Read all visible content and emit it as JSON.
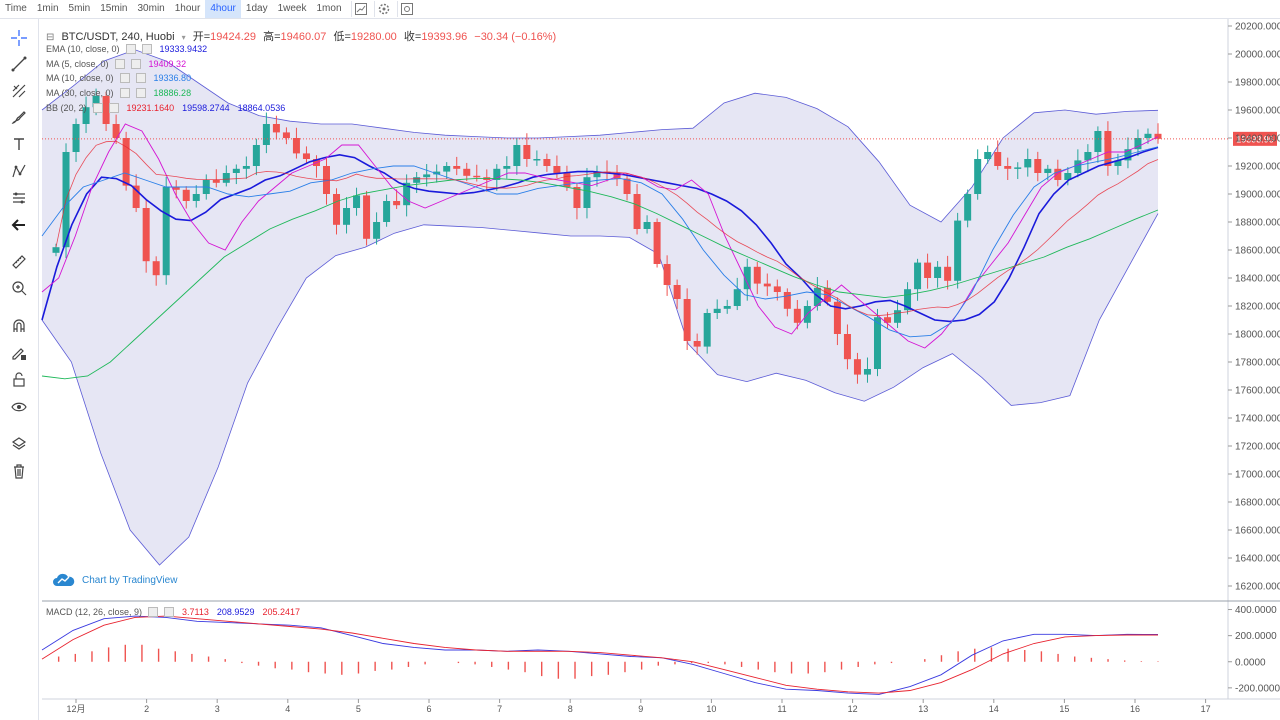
{
  "toolbar": {
    "first_label": "Time",
    "timeframes": [
      "1min",
      "5min",
      "15min",
      "30min",
      "1hour",
      "4hour",
      "1day",
      "1week",
      "1mon"
    ],
    "active_timeframe": "4hour"
  },
  "header": {
    "symbol": "BTC/USDT, 240, Huobi",
    "open_label": "开=",
    "open": "19424.29",
    "high_label": "高=",
    "high": "19460.07",
    "low_label": "低=",
    "low": "19280.00",
    "close_label": "收=",
    "close": "19393.96",
    "change": "−30.34 (−0.16%)"
  },
  "indicators": [
    {
      "label": "EMA (10, close, 0)",
      "values": [
        "19333.9432"
      ],
      "colors": [
        "#1a1adb"
      ]
    },
    {
      "label": "MA (5, close, 0)",
      "values": [
        "19409.32"
      ],
      "colors": [
        "#d414d4"
      ]
    },
    {
      "label": "MA (10, close, 0)",
      "values": [
        "19336.80"
      ],
      "colors": [
        "#2a7fe8"
      ]
    },
    {
      "label": "MA (30, close, 0)",
      "values": [
        "18886.28"
      ],
      "colors": [
        "#1fb85a"
      ]
    },
    {
      "label": "BB (20, 2)",
      "values": [
        "19231.1640",
        "19598.2744",
        "18864.0536"
      ],
      "colors": [
        "#e8232f",
        "#1a1adb",
        "#1a1adb"
      ]
    }
  ],
  "macd_legend": {
    "label": "MACD (12, 26, close, 9)",
    "values": [
      "3.7113",
      "208.9529",
      "205.2417"
    ],
    "colors": [
      "#e8232f",
      "#1a1adb",
      "#e8232f"
    ]
  },
  "watermark": "Chart by TradingView",
  "price_tag": "19393.96",
  "colors": {
    "up": "#26a69a",
    "down": "#ef5350",
    "band_fill": "#e6e6f4",
    "band_line": "#5b5bd6"
  },
  "chart_data": [
    {
      "type": "candlestick",
      "title": "BTC/USDT, 240, Huobi",
      "x_ticks": [
        "12月",
        "2",
        "3",
        "4",
        "5",
        "6",
        "7",
        "8",
        "9",
        "10",
        "11",
        "12",
        "13",
        "14",
        "15",
        "16",
        "17"
      ],
      "ylim": [
        16100,
        20250
      ],
      "y_ticks": [
        "16200.0000",
        "16400.0000",
        "16600.0000",
        "16800.0000",
        "17000.0000",
        "17200.0000",
        "17400.0000",
        "17600.0000",
        "17800.0000",
        "18000.0000",
        "18200.0000",
        "18400.0000",
        "18600.0000",
        "18800.0000",
        "19000.0000",
        "19200.0000",
        "19400.0000",
        "19600.0000",
        "19800.0000",
        "20000.0000",
        "20200.0000"
      ],
      "last_price": 19393.96,
      "closes": [
        18620,
        19300,
        19500,
        19620,
        19700,
        19500,
        19400,
        19060,
        18900,
        18520,
        18420,
        19050,
        19030,
        18950,
        19000,
        19100,
        19080,
        19150,
        19180,
        19200,
        19350,
        19500,
        19440,
        19400,
        19290,
        19250,
        19200,
        19000,
        18780,
        18900,
        18990,
        18680,
        18800,
        18950,
        18920,
        19080,
        19120,
        19140,
        19160,
        19200,
        19180,
        19130,
        19120,
        19100,
        19180,
        19200,
        19350,
        19250,
        19250,
        19200,
        19150,
        19050,
        18900,
        19120,
        19160,
        19150,
        19110,
        19000,
        18750,
        18800,
        18500,
        18350,
        18250,
        17950,
        17910,
        18150,
        18180,
        18200,
        18320,
        18480,
        18360,
        18340,
        18300,
        18180,
        18080,
        18200,
        18330,
        18230,
        18000,
        17820,
        17710,
        17750,
        18120,
        18080,
        18170,
        18320,
        18510,
        18400,
        18480,
        18380,
        18810,
        19000,
        19250,
        19300,
        19200,
        19180,
        19190,
        19250,
        19150,
        19180,
        19100,
        19150,
        19240,
        19300,
        19450,
        19200,
        19240,
        19320,
        19400,
        19430,
        19394
      ],
      "series": [
        {
          "name": "EMA (10, close, 0)",
          "values": [
            18100,
            18480,
            18780,
            19000,
            19120,
            19110,
            19060,
            18960,
            18880,
            18820,
            18810,
            18870,
            18960,
            19000,
            19040,
            19100,
            19130,
            19180,
            19230,
            19260,
            19280,
            19260,
            19200,
            19150,
            19080,
            19040,
            19020,
            19010,
            19000,
            19010,
            19030,
            19050,
            19080,
            19120,
            19140,
            19150,
            19160,
            19160,
            19150,
            19140,
            19120,
            19100,
            19080,
            19060,
            19040,
            19000,
            18950,
            18880,
            18780,
            18650,
            18500,
            18400,
            18280,
            18200,
            18180,
            18200,
            18230,
            18240,
            18200,
            18150,
            18100,
            18090,
            18100,
            18140,
            18230,
            18400,
            18620,
            18860,
            19000,
            19100,
            19150,
            19200,
            19230,
            19260,
            19300,
            19333
          ]
        },
        {
          "name": "MA (5, close, 0)",
          "values": [
            18300,
            18400,
            18700,
            19050,
            19300,
            19500,
            19450,
            19250,
            19000,
            18800,
            18650,
            18600,
            18800,
            18950,
            19050,
            19150,
            19200,
            19250,
            19350,
            19350,
            19200,
            19050,
            18950,
            18900,
            18950,
            19000,
            19050,
            19100,
            19150,
            19150,
            19120,
            19100,
            19080,
            19060,
            19100,
            19150,
            19120,
            19050,
            19030,
            19100,
            19000,
            18700,
            18450,
            18200,
            18050,
            18000,
            18150,
            18250,
            18350,
            18250,
            18150,
            18050,
            17950,
            17900,
            18000,
            18150,
            18350,
            18500,
            18650,
            18850,
            19050,
            19150,
            19200,
            19250,
            19300,
            19300,
            19350,
            19409
          ]
        },
        {
          "name": "MA (10, close, 0)",
          "values": [
            18700,
            18900,
            19050,
            19100,
            19150,
            19100,
            19050,
            19050,
            19050,
            19000,
            18980,
            19000,
            19020,
            19080,
            19100,
            19150,
            19180,
            19200,
            19200,
            19150,
            19100,
            19050,
            19000,
            19000,
            19040,
            19060,
            19080,
            19100,
            19110,
            19080,
            19000,
            18820,
            18600,
            18420,
            18280,
            18250,
            18270,
            18300,
            18280,
            18200,
            18120,
            18030,
            17980,
            17990,
            18080,
            18300,
            18600,
            18850,
            19050,
            19150,
            19200,
            19230,
            19260,
            19300,
            19337
          ]
        },
        {
          "name": "MA (30, close, 0)",
          "values": [
            17700,
            17680,
            17700,
            17800,
            17950,
            18100,
            18250,
            18400,
            18550,
            18650,
            18750,
            18820,
            18880,
            18950,
            19000,
            19030,
            19060,
            19080,
            19100,
            19110,
            19110,
            19100,
            19080,
            19050,
            19020,
            18980,
            18930,
            18860,
            18780,
            18700,
            18620,
            18550,
            18480,
            18410,
            18350,
            18300,
            18280,
            18260,
            18280,
            18310,
            18350,
            18400,
            18450,
            18500,
            18550,
            18620,
            18680,
            18750,
            18820,
            18886
          ]
        },
        {
          "name": "BB (20, 2)",
          "values": [
            19231.164
          ]
        },
        {
          "name": "BB upper",
          "values": [
            19600,
            19770,
            19950,
            20030,
            19950,
            19800,
            19650,
            19560,
            19520,
            19500,
            19500,
            19470,
            19440,
            19420,
            19410,
            19400,
            19400,
            19410,
            19420,
            19440,
            19460,
            19470,
            19650,
            19720,
            19690,
            19610,
            19480,
            19230,
            18920,
            18800,
            19050,
            19400,
            19580,
            19600,
            19570,
            19590,
            19598
          ]
        },
        {
          "name": "BB lower",
          "values": [
            18100,
            17800,
            17150,
            16600,
            16350,
            16550,
            17050,
            17650,
            18040,
            18400,
            18560,
            18620,
            18720,
            18780,
            18770,
            18760,
            18740,
            18720,
            18700,
            18700,
            18690,
            18570,
            17930,
            17710,
            17660,
            17720,
            17670,
            17580,
            17520,
            17620,
            17760,
            17860,
            17690,
            17490,
            17510,
            17560,
            18100,
            18480,
            18860
          ]
        }
      ]
    },
    {
      "type": "line",
      "title": "MACD (12, 26, close, 9)",
      "x_ticks": [
        "12月",
        "2",
        "3",
        "4",
        "5",
        "6",
        "7",
        "8",
        "9",
        "10",
        "11",
        "12",
        "13",
        "14",
        "15",
        "16",
        "17"
      ],
      "ylim": [
        -270,
        450
      ],
      "y_ticks": [
        "400.0000",
        "200.0000",
        "0.0000",
        "-200.0000"
      ],
      "series": [
        {
          "name": "MACD",
          "values": [
            90,
            240,
            330,
            350,
            340,
            310,
            300,
            290,
            280,
            260,
            200,
            140,
            110,
            90,
            90,
            80,
            90,
            80,
            60,
            40,
            30,
            -20,
            -90,
            -160,
            -210,
            -220,
            -240,
            -250,
            -190,
            -100,
            50,
            160,
            210,
            210,
            200,
            210,
            209
          ]
        },
        {
          "name": "Signal",
          "values": [
            20,
            170,
            280,
            340,
            350,
            330,
            310,
            290,
            270,
            250,
            220,
            180,
            140,
            110,
            90,
            80,
            80,
            80,
            70,
            50,
            30,
            0,
            -60,
            -120,
            -180,
            -210,
            -230,
            -240,
            -220,
            -160,
            -60,
            60,
            140,
            190,
            200,
            205,
            205
          ]
        },
        {
          "name": "Histogram",
          "values": [
            0,
            40,
            60,
            80,
            110,
            130,
            130,
            100,
            80,
            60,
            40,
            20,
            -10,
            -30,
            -50,
            -60,
            -80,
            -90,
            -100,
            -90,
            -70,
            -60,
            -40,
            -20,
            0,
            -10,
            -20,
            -40,
            -60,
            -80,
            -110,
            -130,
            -130,
            -110,
            -100,
            -80,
            -60,
            -30,
            -20,
            -10,
            -10,
            -20,
            -40,
            -60,
            -80,
            -90,
            -90,
            -80,
            -60,
            -40,
            -20,
            -10,
            0,
            20,
            50,
            80,
            100,
            110,
            100,
            90,
            80,
            60,
            40,
            30,
            20,
            10,
            5,
            4
          ]
        }
      ]
    }
  ]
}
